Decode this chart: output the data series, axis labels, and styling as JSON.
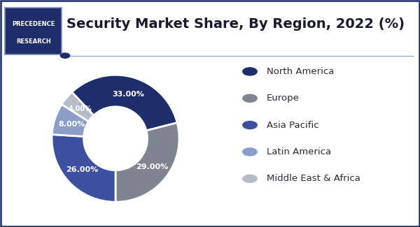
{
  "title": "Security Market Share, By Region, 2022 (%)",
  "labels": [
    "North America",
    "Europe",
    "Asia Pacific",
    "Latin America",
    "Middle East & Africa"
  ],
  "values": [
    33,
    29,
    26,
    8,
    4
  ],
  "colors": [
    "#1e2d6b",
    "#7e8590",
    "#3d4f9f",
    "#8b9dc8",
    "#b5bcc8"
  ],
  "pct_labels": [
    "33.00%",
    "29.00%",
    "26.00%",
    "8.00%",
    "4.00%"
  ],
  "bg_color": "#ffffff",
  "border_color": "#1e2d6b",
  "title_fontsize": 14,
  "legend_fontsize": 9.5,
  "logo_box_color": "#1e2d6b",
  "logo_text_color": "#ffffff",
  "logo_border_color": "#8090bb",
  "separator_color": "#9aaac0",
  "separator_dot_color": "#1e2d6b"
}
